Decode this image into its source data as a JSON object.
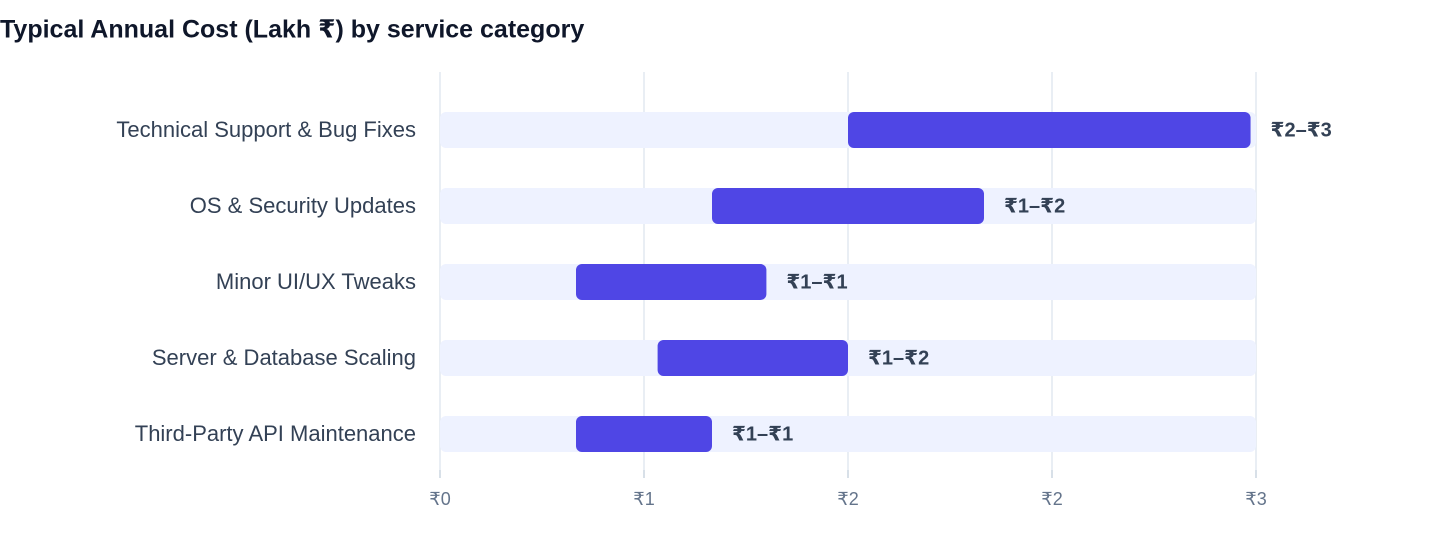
{
  "chart_data": {
    "type": "bar",
    "title": "Typical Annual Cost (Lakh ₹) by service category",
    "categories": [
      "Technical Support & Bug Fixes",
      "OS & Security Updates",
      "Minor UI/UX Tweaks",
      "Server & Database Scaling",
      "Third-Party API Maintenance"
    ],
    "low": [
      1.5,
      1.0,
      0.5,
      0.8,
      0.5
    ],
    "high": [
      2.98,
      2.0,
      1.2,
      1.5,
      1.0
    ],
    "value_labels": [
      "₹2–₹3",
      "₹1–₹2",
      "₹1–₹1",
      "₹1–₹2",
      "₹1–₹1"
    ],
    "color": "#4f46e5",
    "track_color": "#eef2ff",
    "xlim": [
      0,
      3
    ],
    "xticks": [
      {
        "value": 0,
        "label": "₹0"
      },
      {
        "value": 0.75,
        "label": "₹1"
      },
      {
        "value": 1.5,
        "label": "₹2"
      },
      {
        "value": 2.25,
        "label": "₹2"
      },
      {
        "value": 3,
        "label": "₹3"
      }
    ],
    "grid": true
  }
}
